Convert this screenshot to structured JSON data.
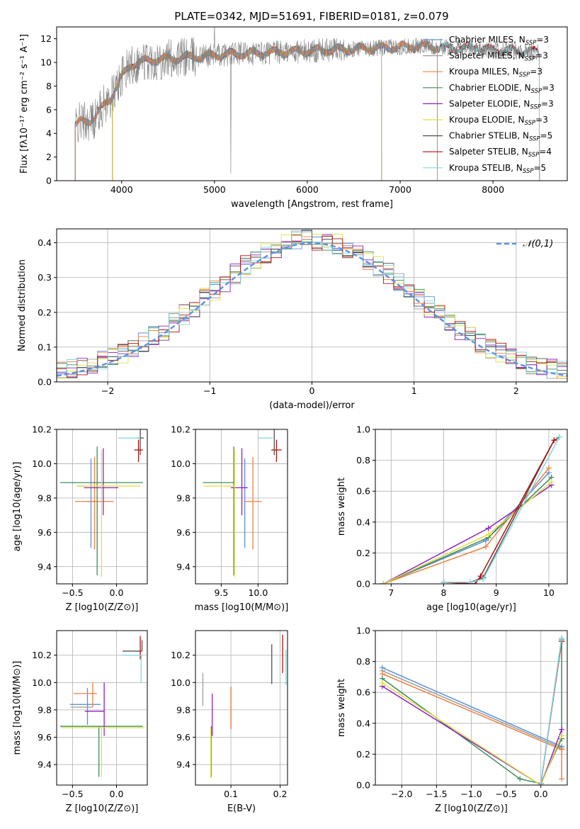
{
  "figure_title": "PLATE=0342, MJD=51691, FIBERID=0181, z=0.079",
  "chart_data": [
    {
      "id": "spectrum",
      "type": "line",
      "title": "PLATE=0342, MJD=51691, FIBERID=0181, z=0.079",
      "xlabel": "wavelength [Angstrom, rest frame]",
      "ylabel": "Flux [fλ10⁻¹⁷ erg cm⁻² s⁻¹ A⁻¹]",
      "xlim": [
        3300,
        8800
      ],
      "ylim": [
        0,
        13
      ],
      "xticks": [
        4000,
        5000,
        6000,
        7000,
        8000
      ],
      "yticks": [
        0,
        2,
        4,
        6,
        8,
        10,
        12
      ],
      "grid": false,
      "legend_position": "right",
      "legend": [
        {
          "label": "Chabrier MILES, N_SSP=3",
          "color": "#5b8fd6"
        },
        {
          "label": "Salpeter MILES, N_SSP=3",
          "color": "#9b9b9b"
        },
        {
          "label": "Kroupa MILES, N_SSP=3",
          "color": "#f08040"
        },
        {
          "label": "Chabrier ELODIE, N_SSP=3",
          "color": "#3c8c5c"
        },
        {
          "label": "Salpeter ELODIE, N_SSP=3",
          "color": "#9020c0"
        },
        {
          "label": "Kroupa ELODIE, N_SSP=3",
          "color": "#e0e040"
        },
        {
          "label": "Chabrier STELIB, N_SSP=5",
          "color": "#505050"
        },
        {
          "label": "Salpeter STELIB, N_SSP=4",
          "color": "#b01010"
        },
        {
          "label": "Kroupa STELIB, N_SSP=5",
          "color": "#80d8e0"
        }
      ],
      "data_profile": {
        "x": [
          3500,
          3560,
          3700,
          3800,
          3900,
          4000,
          4100,
          4300,
          4500,
          4800,
          5000,
          5200,
          5500,
          5800,
          6100,
          6400,
          6700,
          7000,
          7200,
          7400,
          7800,
          8200,
          8500
        ],
        "y": [
          4.6,
          5.0,
          5.2,
          6.3,
          7.2,
          8.8,
          9.8,
          10.2,
          10.3,
          10.5,
          10.6,
          10.7,
          10.8,
          10.9,
          11.0,
          11.1,
          11.2,
          11.3,
          11.4,
          11.3,
          11.2,
          11.0,
          10.9
        ]
      },
      "model_ranges": [
        {
          "label": "Chabrier MILES, N_SSP=3",
          "x": [
            3500,
            7400
          ]
        },
        {
          "label": "Salpeter MILES, N_SSP=3",
          "x": [
            3500,
            7400
          ]
        },
        {
          "label": "Kroupa MILES, N_SSP=3",
          "x": [
            3500,
            7400
          ]
        },
        {
          "label": "Chabrier ELODIE, N_SSP=3",
          "x": [
            3900,
            6800
          ]
        },
        {
          "label": "Salpeter ELODIE, N_SSP=3",
          "x": [
            3900,
            6800
          ]
        },
        {
          "label": "Kroupa ELODIE, N_SSP=3",
          "x": [
            3900,
            6800
          ]
        },
        {
          "label": "Chabrier STELIB, N_SSP=5",
          "x": [
            3500,
            8500
          ]
        },
        {
          "label": "Salpeter STELIB, N_SSP=4",
          "x": [
            3500,
            8500
          ]
        },
        {
          "label": "Kroupa STELIB, N_SSP=5",
          "x": [
            3500,
            8500
          ]
        }
      ]
    },
    {
      "id": "residuals",
      "type": "histogram",
      "xlabel": "(data-model)/error",
      "ylabel": "Normed distribution",
      "xlim": [
        -2.5,
        2.5
      ],
      "ylim": [
        0,
        0.44
      ],
      "xticks": [
        -2,
        -1,
        0,
        1,
        2
      ],
      "yticks": [
        0.0,
        0.1,
        0.2,
        0.3,
        0.4
      ],
      "grid": true,
      "legend_position": "top-right",
      "legend": [
        {
          "label": "𝒩(0,1)",
          "color": "#6090e0",
          "style": "dashed"
        }
      ],
      "bins": 50,
      "bin_range": [
        -2.5,
        2.5
      ],
      "note_values": "per-bin density = gaussian N(0,1) with per-model scatter"
    },
    {
      "id": "age_vs_z",
      "type": "errorbar",
      "xlabel": "Z [log10(Z/Z⊙)]",
      "ylabel": "age  [log10(age/yr)]",
      "xlim": [
        -0.68,
        0.35
      ],
      "ylim": [
        9.3,
        10.2
      ],
      "xticks": [
        -0.5,
        0.0
      ],
      "yticks": [
        9.4,
        9.6,
        9.8,
        10.0,
        10.2
      ],
      "grid": true,
      "points": [
        {
          "label": "Chabrier MILES",
          "x": -0.29,
          "y": 9.78,
          "xerr": [
            0.05,
            0.05
          ],
          "yerr": [
            0.27,
            0.25
          ]
        },
        {
          "label": "Salpeter MILES",
          "x": -0.35,
          "y": 9.87,
          "xerr": [
            0.1,
            0.0
          ],
          "yerr": [
            0.0,
            0.0
          ]
        },
        {
          "label": "Kroupa MILES",
          "x": -0.25,
          "y": 9.78,
          "xerr": [
            0.22,
            0.22
          ],
          "yerr": [
            0.28,
            0.26
          ]
        },
        {
          "label": "Chabrier ELODIE",
          "x": -0.22,
          "y": 9.89,
          "xerr": [
            0.42,
            0.52
          ],
          "yerr": [
            0.54,
            0.21
          ]
        },
        {
          "label": "Salpeter ELODIE",
          "x": -0.15,
          "y": 9.86,
          "xerr": [
            0.22,
            0.17
          ],
          "yerr": [
            0.16,
            0.23
          ]
        },
        {
          "label": "Kroupa ELODIE",
          "x": -0.17,
          "y": 9.87,
          "xerr": [
            0.28,
            0.44
          ],
          "yerr": [
            0.53,
            0.21
          ]
        },
        {
          "label": "Chabrier STELIB",
          "x": 0.27,
          "y": 10.15,
          "xerr": [
            0.04,
            0.04
          ],
          "yerr": [
            0.1,
            0.05
          ]
        },
        {
          "label": "Salpeter STELIB",
          "x": 0.25,
          "y": 10.08,
          "xerr": [
            0.05,
            0.05
          ],
          "yerr": [
            0.07,
            0.06
          ]
        },
        {
          "label": "Kroupa STELIB",
          "x": 0.27,
          "y": 10.15,
          "xerr": [
            0.25,
            0.0
          ],
          "yerr": [
            0.0,
            0.0
          ]
        }
      ]
    },
    {
      "id": "age_vs_mass",
      "type": "errorbar",
      "xlabel": "mass [log10(M/M⊙)]",
      "ylabel": "",
      "xlim": [
        9.15,
        10.4
      ],
      "ylim": [
        9.3,
        10.2
      ],
      "xticks": [
        9.5,
        10.0
      ],
      "yticks": [
        9.4,
        9.6,
        9.8,
        10.0,
        10.2
      ],
      "grid": true,
      "points": [
        {
          "label": "Chabrier MILES",
          "x": 9.82,
          "y": 9.78,
          "xerr": [
            0.0,
            0.0
          ],
          "yerr": [
            0.27,
            0.25
          ]
        },
        {
          "label": "Salpeter MILES",
          "x": 9.87,
          "y": 9.87,
          "xerr": [
            0.0,
            0.0
          ],
          "yerr": [
            0.0,
            0.0
          ]
        },
        {
          "label": "Kroupa MILES",
          "x": 9.93,
          "y": 9.78,
          "xerr": [
            0.12,
            0.12
          ],
          "yerr": [
            0.28,
            0.26
          ]
        },
        {
          "label": "Chabrier ELODIE",
          "x": 9.67,
          "y": 9.89,
          "xerr": [
            0.42,
            0.0
          ],
          "yerr": [
            0.54,
            0.21
          ]
        },
        {
          "label": "Salpeter ELODIE",
          "x": 9.78,
          "y": 9.86,
          "xerr": [
            0.15,
            0.08
          ],
          "yerr": [
            0.16,
            0.23
          ]
        },
        {
          "label": "Kroupa ELODIE",
          "x": 9.68,
          "y": 9.87,
          "xerr": [
            0.42,
            0.0
          ],
          "yerr": [
            0.53,
            0.21
          ]
        },
        {
          "label": "Chabrier STELIB",
          "x": 10.22,
          "y": 10.15,
          "xerr": [
            0.0,
            0.0
          ],
          "yerr": [
            0.1,
            0.05
          ]
        },
        {
          "label": "Salpeter STELIB",
          "x": 10.25,
          "y": 10.08,
          "xerr": [
            0.07,
            0.07
          ],
          "yerr": [
            0.07,
            0.06
          ]
        },
        {
          "label": "Kroupa STELIB",
          "x": 10.2,
          "y": 10.15,
          "xerr": [
            0.2,
            0.0
          ],
          "yerr": [
            0.0,
            0.0
          ]
        }
      ]
    },
    {
      "id": "mass_weight_vs_age",
      "type": "line",
      "xlabel": "age  [log10(age/yr)]",
      "ylabel": "mass weight",
      "xlim": [
        6.7,
        10.35
      ],
      "ylim": [
        0,
        1
      ],
      "xticks": [
        7,
        8,
        9,
        10
      ],
      "yticks": [
        0.0,
        0.2,
        0.4,
        0.6,
        0.8,
        1.0
      ],
      "grid": true,
      "series": [
        {
          "label": "Chabrier MILES",
          "x": [
            6.85,
            8.8,
            10.0
          ],
          "y": [
            0.0,
            0.28,
            0.72
          ]
        },
        {
          "label": "Kroupa MILES",
          "x": [
            6.85,
            8.8,
            10.0
          ],
          "y": [
            0.0,
            0.24,
            0.75
          ]
        },
        {
          "label": "Chabrier ELODIE",
          "x": [
            6.85,
            8.85,
            10.05
          ],
          "y": [
            0.0,
            0.3,
            0.69
          ]
        },
        {
          "label": "Salpeter ELODIE",
          "x": [
            6.85,
            8.85,
            10.05
          ],
          "y": [
            0.0,
            0.36,
            0.64
          ]
        },
        {
          "label": "Kroupa ELODIE",
          "x": [
            6.85,
            8.85,
            10.05
          ],
          "y": [
            0.0,
            0.32,
            0.66
          ]
        },
        {
          "label": "Chabrier STELIB",
          "x": [
            8.0,
            8.5,
            8.75,
            10.1,
            10.2
          ],
          "y": [
            0.01,
            0.01,
            0.04,
            0.93,
            0.95
          ]
        },
        {
          "label": "Salpeter STELIB",
          "x": [
            8.0,
            8.6,
            8.7,
            10.1
          ],
          "y": [
            0.01,
            0.0,
            0.05,
            0.93
          ]
        },
        {
          "label": "Kroupa STELIB",
          "x": [
            8.0,
            8.5,
            8.75,
            10.2
          ],
          "y": [
            0.01,
            0.01,
            0.03,
            0.95
          ]
        }
      ]
    },
    {
      "id": "mass_vs_z",
      "type": "errorbar",
      "xlabel": "Z [log10(Z/Z⊙)]",
      "ylabel": "mass [log10(M/M⊙)]",
      "xlim": [
        -0.68,
        0.35
      ],
      "ylim": [
        9.25,
        10.38
      ],
      "xticks": [
        -0.5,
        0.0
      ],
      "yticks": [
        9.4,
        9.6,
        9.8,
        10.0,
        10.2
      ],
      "grid": true,
      "points": [
        {
          "label": "Chabrier MILES",
          "x": -0.33,
          "y": 9.84,
          "xerr": [
            0.2,
            0.15
          ],
          "yerr": [
            0.15,
            0.12
          ]
        },
        {
          "label": "Salpeter MILES",
          "x": -0.37,
          "y": 9.82,
          "xerr": [
            0.15,
            0.1
          ],
          "yerr": [
            0.0,
            0.0
          ]
        },
        {
          "label": "Kroupa MILES",
          "x": -0.27,
          "y": 9.92,
          "xerr": [
            0.22,
            0.05
          ],
          "yerr": [
            0.1,
            0.08
          ]
        },
        {
          "label": "Chabrier ELODIE",
          "x": -0.2,
          "y": 9.68,
          "xerr": [
            0.44,
            0.5
          ],
          "yerr": [
            0.37,
            0.0
          ]
        },
        {
          "label": "Salpeter ELODIE",
          "x": -0.14,
          "y": 9.79,
          "xerr": [
            0.22,
            0.0
          ],
          "yerr": [
            0.18,
            0.21
          ]
        },
        {
          "label": "Kroupa ELODIE",
          "x": -0.17,
          "y": 9.67,
          "xerr": [
            0.46,
            0.49
          ],
          "yerr": [
            0.36,
            0.0
          ]
        },
        {
          "label": "Chabrier STELIB",
          "x": 0.29,
          "y": 10.23,
          "xerr": [
            0.22,
            0.0
          ],
          "yerr": [
            0.0,
            0.08
          ]
        },
        {
          "label": "Salpeter STELIB",
          "x": 0.27,
          "y": 10.25,
          "xerr": [
            0.0,
            0.0
          ],
          "yerr": [
            0.08,
            0.09
          ]
        },
        {
          "label": "Kroupa STELIB",
          "x": 0.28,
          "y": 10.2,
          "xerr": [
            0.22,
            0.0
          ],
          "yerr": [
            0.2,
            0.0
          ]
        }
      ]
    },
    {
      "id": "mass_vs_ebv",
      "type": "errorbar",
      "xlabel": "E(B-V)",
      "ylabel": "",
      "xlim": [
        0.028,
        0.215
      ],
      "ylim": [
        9.25,
        10.38
      ],
      "xticks": [
        0.1,
        0.2
      ],
      "yticks": [
        9.4,
        9.6,
        9.8,
        10.0,
        10.2
      ],
      "grid": true,
      "points": [
        {
          "label": "Chabrier MILES",
          "x": 0.1,
          "y": 9.82,
          "xerr": [
            0.0,
            0.0
          ],
          "yerr": [
            0.16,
            0.15
          ]
        },
        {
          "label": "Kroupa MILES",
          "x": 0.1,
          "y": 9.82,
          "xerr": [
            0.0,
            0.0
          ],
          "yerr": [
            0.16,
            0.14
          ]
        },
        {
          "label": "Salpeter MILES",
          "x": 0.043,
          "y": 9.95,
          "xerr": [
            0.0,
            0.0
          ],
          "yerr": [
            0.12,
            0.12
          ]
        },
        {
          "label": "Chabrier ELODIE",
          "x": 0.06,
          "y": 9.68,
          "xerr": [
            0.0,
            0.0
          ],
          "yerr": [
            0.37,
            0.0
          ]
        },
        {
          "label": "Salpeter ELODIE",
          "x": 0.062,
          "y": 9.79,
          "xerr": [
            0.0,
            0.0
          ],
          "yerr": [
            0.18,
            0.13
          ]
        },
        {
          "label": "Kroupa ELODIE",
          "x": 0.059,
          "y": 9.67,
          "xerr": [
            0.0,
            0.0
          ],
          "yerr": [
            0.37,
            0.0
          ]
        },
        {
          "label": "Chabrier STELIB",
          "x": 0.183,
          "y": 10.13,
          "xerr": [
            0.0,
            0.0
          ],
          "yerr": [
            0.14,
            0.15
          ]
        },
        {
          "label": "Salpeter STELIB",
          "x": 0.205,
          "y": 10.2,
          "xerr": [
            0.0,
            0.0
          ],
          "yerr": [
            0.13,
            0.15
          ]
        },
        {
          "label": "Kroupa STELIB",
          "x": 0.212,
          "y": 10.07,
          "xerr": [
            0.0,
            0.0
          ],
          "yerr": [
            0.09,
            0.17
          ]
        }
      ]
    },
    {
      "id": "mass_weight_vs_z",
      "type": "line",
      "xlabel": "Z [log10(Z/Z⊙)]",
      "ylabel": "mass weight",
      "xlim": [
        -2.38,
        0.38
      ],
      "ylim": [
        0,
        1
      ],
      "xticks": [
        -2.0,
        -1.5,
        -1.0,
        -0.5,
        0.0
      ],
      "yticks": [
        0.0,
        0.2,
        0.4,
        0.6,
        0.8,
        1.0
      ],
      "grid": true,
      "series": [
        {
          "label": "Chabrier MILES",
          "x": [
            -2.28,
            0.3,
            0.3
          ],
          "y": [
            0.76,
            0.25,
            0.23
          ]
        },
        {
          "label": "Salpeter MILES",
          "x": [
            -2.28,
            0.3
          ],
          "y": [
            0.74,
            0.24
          ]
        },
        {
          "label": "Kroupa MILES",
          "x": [
            -2.28,
            0.3,
            0.3
          ],
          "y": [
            0.72,
            0.23,
            0.04
          ]
        },
        {
          "label": "Chabrier ELODIE",
          "x": [
            -2.28,
            -0.3,
            0.0,
            0.3,
            0.3
          ],
          "y": [
            0.69,
            0.04,
            0.01,
            0.3,
            0.94
          ]
        },
        {
          "label": "Salpeter ELODIE",
          "x": [
            -2.28,
            0.0,
            0.3
          ],
          "y": [
            0.64,
            0.0,
            0.36
          ]
        },
        {
          "label": "Kroupa ELODIE",
          "x": [
            -2.28,
            0.0,
            0.3
          ],
          "y": [
            0.66,
            0.0,
            0.32
          ]
        },
        {
          "label": "Chabrier STELIB",
          "x": [
            0.0,
            0.3
          ],
          "y": [
            0.01,
            0.95
          ]
        },
        {
          "label": "Salpeter STELIB",
          "x": [
            0.0,
            0.3
          ],
          "y": [
            0.01,
            0.93
          ]
        },
        {
          "label": "Kroupa STELIB",
          "x": [
            0.0,
            0.3
          ],
          "y": [
            0.01,
            0.95
          ]
        }
      ]
    }
  ]
}
